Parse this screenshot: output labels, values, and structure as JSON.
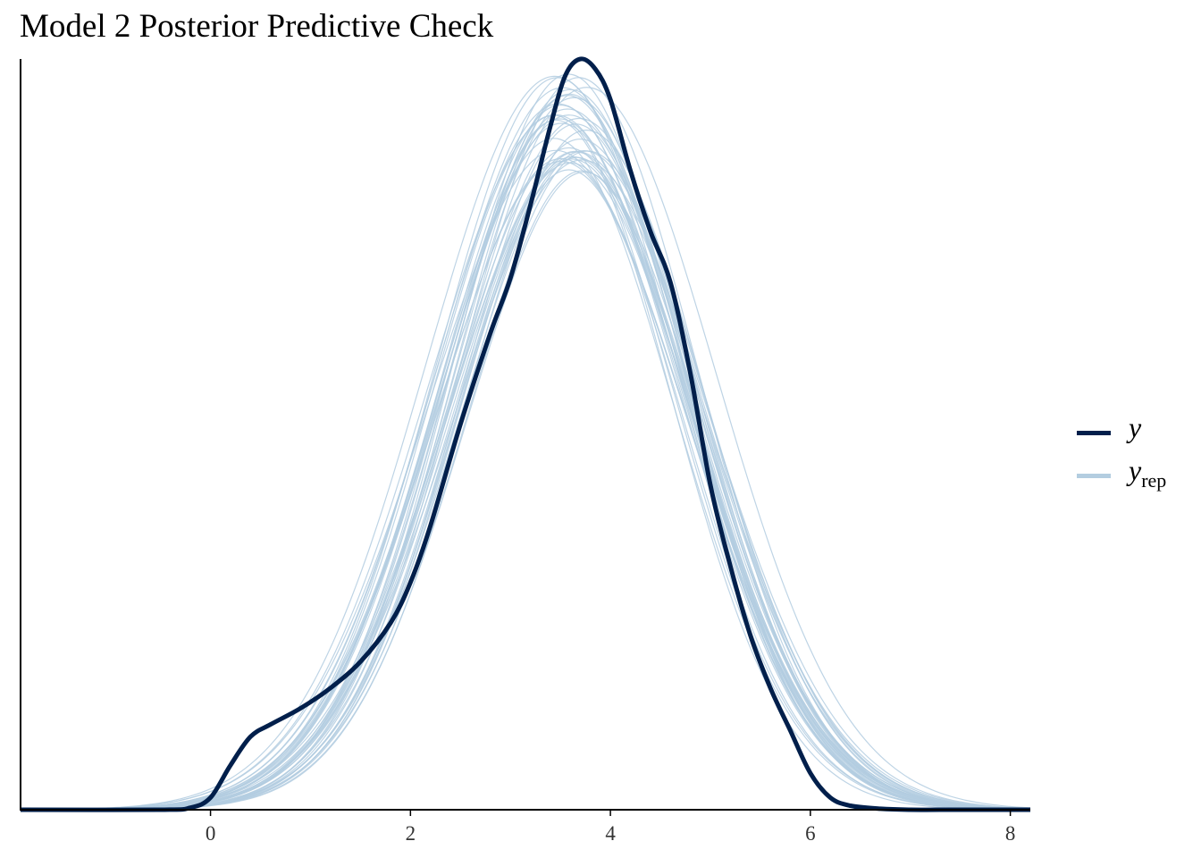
{
  "chart_data": {
    "type": "line",
    "title": "Model 2 Posterior Predictive Check",
    "xlabel": "",
    "ylabel": "",
    "xlim": [
      -1.9,
      8.2
    ],
    "ylim": [
      0,
      0.37
    ],
    "x_ticks": [
      "0",
      "2",
      "4",
      "6",
      "8"
    ],
    "grid": false,
    "legend_position": "right",
    "colors": {
      "y": "#011f4b",
      "yrep": "#b3cde0",
      "axis": "#000000"
    },
    "legend": [
      {
        "key": "y",
        "label": "y",
        "sub": "",
        "color": "#011f4b"
      },
      {
        "key": "yrep",
        "label": "y",
        "sub": "rep",
        "color": "#b3cde0"
      }
    ],
    "series": [
      {
        "name": "y",
        "x": [
          -1.9,
          -0.5,
          -0.2,
          0,
          0.2,
          0.4,
          0.6,
          0.9,
          1.2,
          1.5,
          1.8,
          2.0,
          2.2,
          2.5,
          2.8,
          3.0,
          3.2,
          3.4,
          3.55,
          3.7,
          3.85,
          4.0,
          4.2,
          4.4,
          4.6,
          4.8,
          5.0,
          5.2,
          5.4,
          5.6,
          5.8,
          6.0,
          6.2,
          6.4,
          6.7,
          7.0,
          7.5,
          8.2
        ],
        "y": [
          0,
          0,
          0.001,
          0.006,
          0.022,
          0.036,
          0.042,
          0.05,
          0.06,
          0.073,
          0.092,
          0.112,
          0.14,
          0.19,
          0.235,
          0.262,
          0.298,
          0.337,
          0.362,
          0.37,
          0.365,
          0.35,
          0.315,
          0.285,
          0.26,
          0.215,
          0.16,
          0.12,
          0.086,
          0.06,
          0.039,
          0.018,
          0.006,
          0.002,
          0.0005,
          0,
          0,
          0
        ]
      }
    ],
    "yrep_draws": 40
  }
}
